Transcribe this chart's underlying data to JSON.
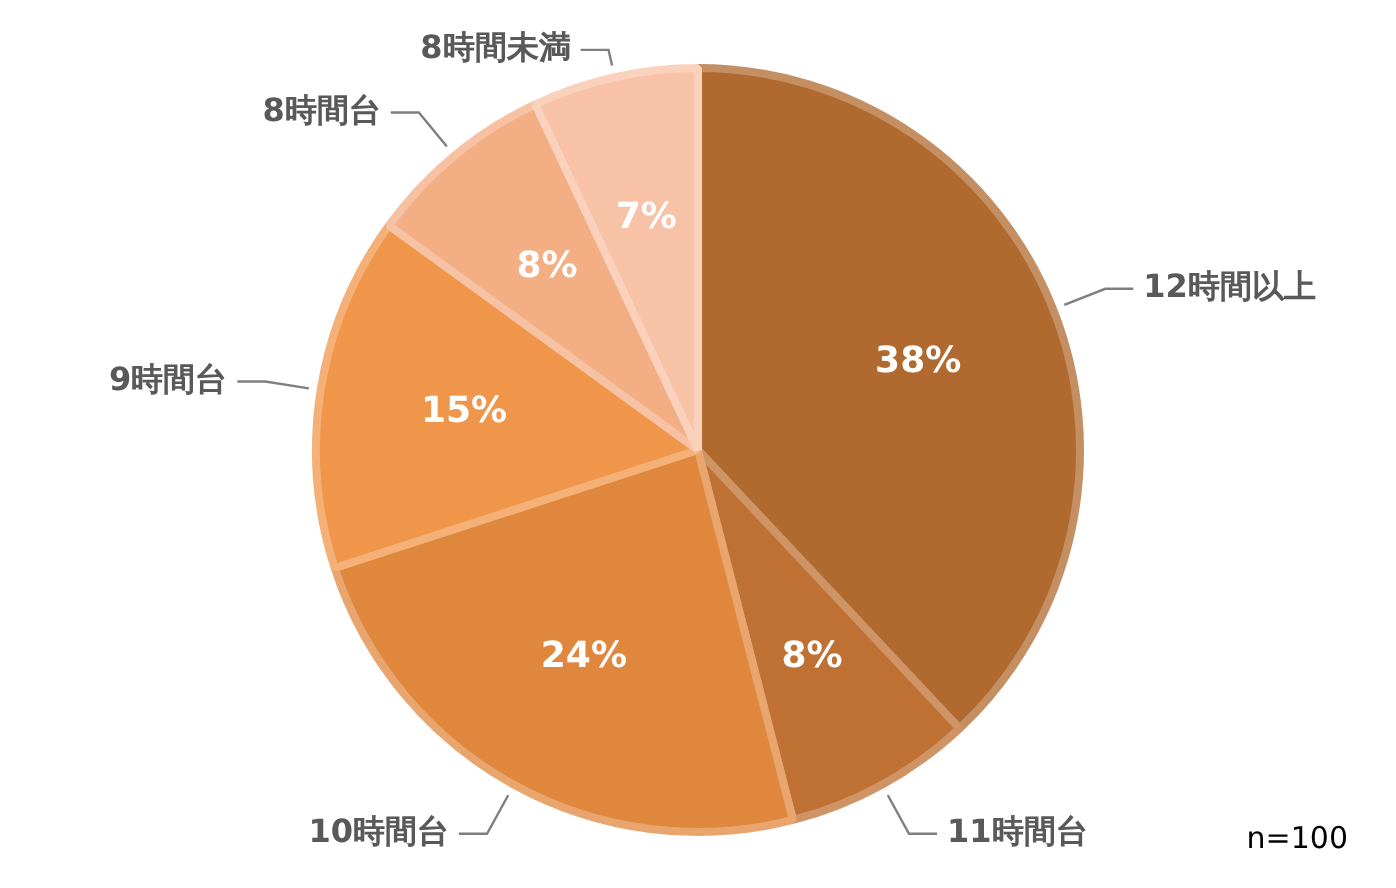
{
  "chart_data": {
    "type": "pie",
    "categories": [
      "12時間以上",
      "11時間台",
      "10時間台",
      "9時間台",
      "8時間台",
      "8時間未満"
    ],
    "values": [
      38,
      8,
      24,
      15,
      8,
      7
    ],
    "colors": [
      "#b0692e",
      "#bf7033",
      "#e0873e",
      "#f0964a",
      "#f3ae84",
      "#f7c2a6"
    ],
    "value_labels": [
      "38%",
      "8%",
      "24%",
      "15%",
      "8%",
      "7%"
    ],
    "legend": false,
    "annotations": [
      "n=100"
    ]
  }
}
